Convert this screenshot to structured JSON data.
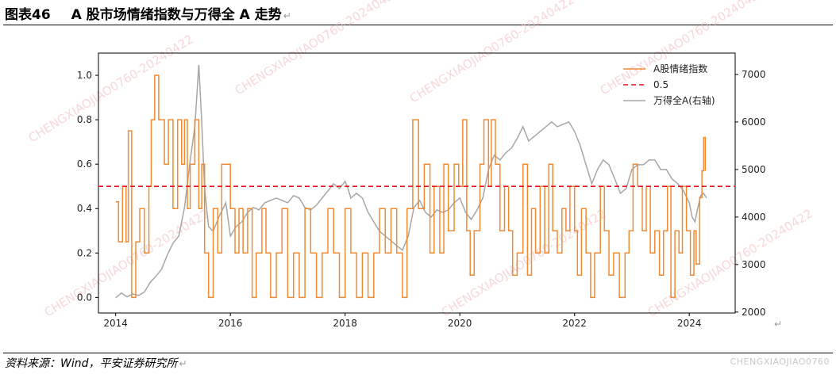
{
  "figure": {
    "number": "图表46",
    "title": "A 股市场情绪指数与万得全 A 走势",
    "return_mark": "↵",
    "source": "资料来源：Wind，平安证券研究所",
    "watermark_diag": "CHENGXIAOJIAO0760-20240422",
    "watermark_corner": "CHENGXIAOJIAO0760"
  },
  "colors": {
    "sentiment": "#f08a33",
    "threshold": "#e8141e",
    "wind": "#a6a6a6"
  },
  "chart_data": {
    "type": "line",
    "x_axis": {
      "range": [
        2013.7,
        2024.8
      ],
      "ticks": [
        "2014",
        "2016",
        "2018",
        "2020",
        "2022",
        "2024"
      ],
      "tick_values": [
        2014,
        2016,
        2018,
        2020,
        2022,
        2024
      ]
    },
    "y_left": {
      "range": [
        -0.07,
        1.1
      ],
      "ticks": [
        "0.0",
        "0.2",
        "0.4",
        "0.6",
        "0.8",
        "1.0"
      ],
      "tick_values": [
        0,
        0.2,
        0.4,
        0.6,
        0.8,
        1.0
      ]
    },
    "y_right": {
      "range": [
        1980,
        7450
      ],
      "ticks": [
        "2000",
        "3000",
        "4000",
        "5000",
        "6000",
        "7000"
      ],
      "tick_values": [
        2000,
        3000,
        4000,
        5000,
        6000,
        7000
      ]
    },
    "legend_position": "top-right",
    "series": [
      {
        "name": "A股情绪指数",
        "axis": "left",
        "style": "solid",
        "points": [
          [
            2014.0,
            0.43
          ],
          [
            2014.05,
            0.25
          ],
          [
            2014.12,
            0.5
          ],
          [
            2014.18,
            0.25
          ],
          [
            2014.22,
            0.75
          ],
          [
            2014.28,
            0.0
          ],
          [
            2014.35,
            0.25
          ],
          [
            2014.42,
            0.4
          ],
          [
            2014.5,
            0.2
          ],
          [
            2014.58,
            0.5
          ],
          [
            2014.62,
            0.8
          ],
          [
            2014.68,
            1.0
          ],
          [
            2014.75,
            0.8
          ],
          [
            2014.85,
            0.6
          ],
          [
            2014.92,
            0.8
          ],
          [
            2015.0,
            0.4
          ],
          [
            2015.08,
            0.8
          ],
          [
            2015.15,
            0.6
          ],
          [
            2015.2,
            0.8
          ],
          [
            2015.25,
            0.4
          ],
          [
            2015.3,
            0.6
          ],
          [
            2015.38,
            0.8
          ],
          [
            2015.45,
            0.4
          ],
          [
            2015.5,
            0.6
          ],
          [
            2015.55,
            0.2
          ],
          [
            2015.62,
            0.0
          ],
          [
            2015.7,
            0.4
          ],
          [
            2015.78,
            0.2
          ],
          [
            2015.85,
            0.6
          ],
          [
            2015.95,
            0.6
          ],
          [
            2016.0,
            0.4
          ],
          [
            2016.08,
            0.2
          ],
          [
            2016.15,
            0.4
          ],
          [
            2016.22,
            0.2
          ],
          [
            2016.3,
            0.4
          ],
          [
            2016.38,
            0.0
          ],
          [
            2016.45,
            0.2
          ],
          [
            2016.55,
            0.4
          ],
          [
            2016.62,
            0.2
          ],
          [
            2016.7,
            0.0
          ],
          [
            2016.8,
            0.2
          ],
          [
            2016.9,
            0.4
          ],
          [
            2017.0,
            0.0
          ],
          [
            2017.1,
            0.2
          ],
          [
            2017.2,
            0.0
          ],
          [
            2017.3,
            0.4
          ],
          [
            2017.4,
            0.2
          ],
          [
            2017.5,
            0.0
          ],
          [
            2017.6,
            0.2
          ],
          [
            2017.7,
            0.4
          ],
          [
            2017.8,
            0.2
          ],
          [
            2017.9,
            0.0
          ],
          [
            2018.0,
            0.4
          ],
          [
            2018.1,
            0.2
          ],
          [
            2018.2,
            0.0
          ],
          [
            2018.3,
            0.2
          ],
          [
            2018.4,
            0.0
          ],
          [
            2018.5,
            0.2
          ],
          [
            2018.6,
            0.4
          ],
          [
            2018.7,
            0.2
          ],
          [
            2018.8,
            0.4
          ],
          [
            2018.9,
            0.2
          ],
          [
            2019.0,
            0.0
          ],
          [
            2019.08,
            0.4
          ],
          [
            2019.18,
            0.8
          ],
          [
            2019.28,
            0.4
          ],
          [
            2019.38,
            0.6
          ],
          [
            2019.48,
            0.2
          ],
          [
            2019.55,
            0.5
          ],
          [
            2019.65,
            0.2
          ],
          [
            2019.72,
            0.6
          ],
          [
            2019.8,
            0.3
          ],
          [
            2019.9,
            0.6
          ],
          [
            2019.98,
            0.5
          ],
          [
            2020.05,
            0.8
          ],
          [
            2020.12,
            0.3
          ],
          [
            2020.18,
            0.1
          ],
          [
            2020.25,
            0.3
          ],
          [
            2020.35,
            0.6
          ],
          [
            2020.42,
            0.8
          ],
          [
            2020.5,
            0.5
          ],
          [
            2020.55,
            0.8
          ],
          [
            2020.62,
            0.6
          ],
          [
            2020.7,
            0.3
          ],
          [
            2020.78,
            0.5
          ],
          [
            2020.85,
            0.3
          ],
          [
            2020.92,
            0.1
          ],
          [
            2021.0,
            0.2
          ],
          [
            2021.1,
            0.6
          ],
          [
            2021.18,
            0.1
          ],
          [
            2021.25,
            0.4
          ],
          [
            2021.32,
            0.2
          ],
          [
            2021.4,
            0.5
          ],
          [
            2021.48,
            0.2
          ],
          [
            2021.55,
            0.6
          ],
          [
            2021.62,
            0.3
          ],
          [
            2021.7,
            0.2
          ],
          [
            2021.78,
            0.4
          ],
          [
            2021.85,
            0.3
          ],
          [
            2021.92,
            0.5
          ],
          [
            2022.0,
            0.3
          ],
          [
            2022.05,
            0.1
          ],
          [
            2022.12,
            0.4
          ],
          [
            2022.2,
            0.2
          ],
          [
            2022.28,
            0.0
          ],
          [
            2022.35,
            0.2
          ],
          [
            2022.45,
            0.5
          ],
          [
            2022.52,
            0.3
          ],
          [
            2022.6,
            0.1
          ],
          [
            2022.68,
            0.2
          ],
          [
            2022.78,
            0.0
          ],
          [
            2022.88,
            0.2
          ],
          [
            2022.95,
            0.3
          ],
          [
            2023.02,
            0.6
          ],
          [
            2023.1,
            0.5
          ],
          [
            2023.18,
            0.3
          ],
          [
            2023.25,
            0.5
          ],
          [
            2023.32,
            0.2
          ],
          [
            2023.4,
            0.3
          ],
          [
            2023.48,
            0.1
          ],
          [
            2023.55,
            0.3
          ],
          [
            2023.62,
            0.5
          ],
          [
            2023.68,
            0.0
          ],
          [
            2023.75,
            0.3
          ],
          [
            2023.82,
            0.2
          ],
          [
            2023.88,
            0.5
          ],
          [
            2023.95,
            0.3
          ],
          [
            2024.02,
            0.1
          ],
          [
            2024.08,
            0.3
          ],
          [
            2024.12,
            0.15
          ],
          [
            2024.18,
            0.45
          ],
          [
            2024.22,
            0.57
          ],
          [
            2024.25,
            0.72
          ],
          [
            2024.28,
            0.57
          ]
        ]
      },
      {
        "name": "0.5",
        "axis": "left",
        "style": "dashed",
        "points": [
          [
            2013.7,
            0.5
          ],
          [
            2024.8,
            0.5
          ]
        ]
      },
      {
        "name": "万得全A(右轴)",
        "axis": "right",
        "style": "solid",
        "points": [
          [
            2014.0,
            2300
          ],
          [
            2014.1,
            2400
          ],
          [
            2014.2,
            2320
          ],
          [
            2014.3,
            2380
          ],
          [
            2014.4,
            2350
          ],
          [
            2014.5,
            2420
          ],
          [
            2014.6,
            2620
          ],
          [
            2014.7,
            2750
          ],
          [
            2014.8,
            2900
          ],
          [
            2014.9,
            3200
          ],
          [
            2015.0,
            3450
          ],
          [
            2015.1,
            3600
          ],
          [
            2015.2,
            4200
          ],
          [
            2015.3,
            5200
          ],
          [
            2015.38,
            5900
          ],
          [
            2015.45,
            7200
          ],
          [
            2015.5,
            6000
          ],
          [
            2015.55,
            4600
          ],
          [
            2015.62,
            3800
          ],
          [
            2015.7,
            3700
          ],
          [
            2015.8,
            4000
          ],
          [
            2015.92,
            4300
          ],
          [
            2016.0,
            3600
          ],
          [
            2016.1,
            3800
          ],
          [
            2016.2,
            3900
          ],
          [
            2016.3,
            4100
          ],
          [
            2016.4,
            4200
          ],
          [
            2016.5,
            4150
          ],
          [
            2016.6,
            4300
          ],
          [
            2016.7,
            4350
          ],
          [
            2016.8,
            4400
          ],
          [
            2016.9,
            4350
          ],
          [
            2017.0,
            4300
          ],
          [
            2017.1,
            4450
          ],
          [
            2017.2,
            4400
          ],
          [
            2017.3,
            4200
          ],
          [
            2017.4,
            4150
          ],
          [
            2017.5,
            4250
          ],
          [
            2017.6,
            4400
          ],
          [
            2017.7,
            4550
          ],
          [
            2017.8,
            4700
          ],
          [
            2017.9,
            4600
          ],
          [
            2018.0,
            4750
          ],
          [
            2018.05,
            4600
          ],
          [
            2018.1,
            4400
          ],
          [
            2018.2,
            4500
          ],
          [
            2018.3,
            4400
          ],
          [
            2018.4,
            4100
          ],
          [
            2018.5,
            3900
          ],
          [
            2018.6,
            3700
          ],
          [
            2018.7,
            3600
          ],
          [
            2018.8,
            3500
          ],
          [
            2018.9,
            3400
          ],
          [
            2019.0,
            3300
          ],
          [
            2019.1,
            3600
          ],
          [
            2019.2,
            4200
          ],
          [
            2019.3,
            4350
          ],
          [
            2019.4,
            4100
          ],
          [
            2019.5,
            4000
          ],
          [
            2019.6,
            4150
          ],
          [
            2019.7,
            4100
          ],
          [
            2019.8,
            4150
          ],
          [
            2019.9,
            4300
          ],
          [
            2020.0,
            4400
          ],
          [
            2020.1,
            4100
          ],
          [
            2020.2,
            3950
          ],
          [
            2020.3,
            4150
          ],
          [
            2020.4,
            4400
          ],
          [
            2020.5,
            5000
          ],
          [
            2020.6,
            5300
          ],
          [
            2020.7,
            5200
          ],
          [
            2020.8,
            5350
          ],
          [
            2020.9,
            5450
          ],
          [
            2021.0,
            5650
          ],
          [
            2021.1,
            5900
          ],
          [
            2021.2,
            5600
          ],
          [
            2021.3,
            5700
          ],
          [
            2021.4,
            5800
          ],
          [
            2021.5,
            5900
          ],
          [
            2021.6,
            6000
          ],
          [
            2021.7,
            5900
          ],
          [
            2021.8,
            5950
          ],
          [
            2021.9,
            6000
          ],
          [
            2022.0,
            5800
          ],
          [
            2022.1,
            5500
          ],
          [
            2022.2,
            5100
          ],
          [
            2022.3,
            4700
          ],
          [
            2022.4,
            5000
          ],
          [
            2022.5,
            5200
          ],
          [
            2022.6,
            5100
          ],
          [
            2022.7,
            4800
          ],
          [
            2022.8,
            4500
          ],
          [
            2022.9,
            4600
          ],
          [
            2023.0,
            5000
          ],
          [
            2023.1,
            5100
          ],
          [
            2023.2,
            5100
          ],
          [
            2023.3,
            5200
          ],
          [
            2023.4,
            5200
          ],
          [
            2023.5,
            5000
          ],
          [
            2023.6,
            5000
          ],
          [
            2023.7,
            4800
          ],
          [
            2023.8,
            4700
          ],
          [
            2023.9,
            4550
          ],
          [
            2024.0,
            4300
          ],
          [
            2024.05,
            4000
          ],
          [
            2024.1,
            3900
          ],
          [
            2024.15,
            4200
          ],
          [
            2024.2,
            4450
          ],
          [
            2024.25,
            4500
          ],
          [
            2024.3,
            4400
          ]
        ]
      }
    ]
  }
}
